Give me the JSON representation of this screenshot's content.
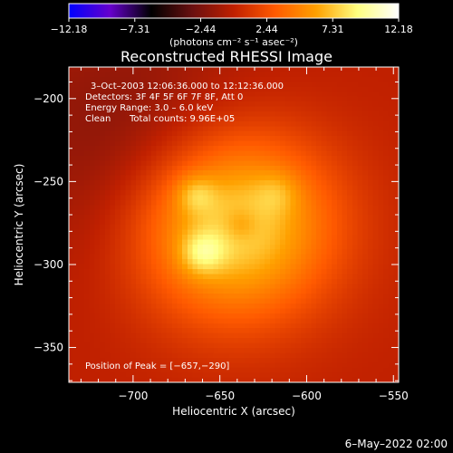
{
  "chart_data": {
    "type": "heatmap",
    "title": "Reconstructed RHESSI Image",
    "xlabel": "Heliocentric X (arcsec)",
    "ylabel": "Heliocentric Y (arcsec)",
    "xlim": [
      -737,
      -547
    ],
    "ylim": [
      -371,
      -181
    ],
    "x_ticks": [
      -700,
      -650,
      -600,
      -550
    ],
    "x_tick_labels": [
      "−700",
      "−650",
      "−600",
      "−550"
    ],
    "y_ticks": [
      -200,
      -250,
      -300,
      -350
    ],
    "y_tick_labels": [
      "−200",
      "−250",
      "−300",
      "−350"
    ],
    "colorbar": {
      "min": -12.18,
      "max": 12.18,
      "ticks": [
        -12.18,
        -7.31,
        -2.44,
        2.44,
        7.31,
        12.18
      ],
      "tick_labels": [
        "−12.18",
        "−7.31",
        "−2.44",
        "2.44",
        "7.31",
        "12.18"
      ],
      "units": "(photons cm⁻² s⁻¹ asec⁻²)",
      "colors": [
        "#0000ff",
        "#6600cc",
        "#000000",
        "#6a1010",
        "#c02000",
        "#ff5a00",
        "#ffa000",
        "#ffff80",
        "#ffffff"
      ]
    },
    "annotations": {
      "time": "3–Oct–2003 12:06:36.000 to 12:12:36.000",
      "detectors": "Detectors: 3F 4F 5F 6F 7F 8F, Att 0",
      "energy": "Energy Range: 3.0 – 6.0 keV",
      "clean": "Clean",
      "total_counts": "Total counts: 9.96E+05",
      "peak": "Position of Peak = [−657,−290]"
    },
    "sources": [
      {
        "x": -642,
        "y": -276,
        "sigma": 40,
        "amp": 8.8
      },
      {
        "x": -660,
        "y": -293,
        "sigma": 9,
        "amp": 3.4
      },
      {
        "x": -664,
        "y": -258,
        "sigma": 8,
        "amp": 2.6
      },
      {
        "x": -617,
        "y": -257,
        "sigma": 9,
        "amp": 1.6
      },
      {
        "x": -638,
        "y": -276,
        "sigma": 7,
        "amp": -1.6
      },
      {
        "x": -700,
        "y": -225,
        "sigma": 55,
        "amp": -2.2
      }
    ]
  },
  "footer": {
    "date": "6–May–2022 02:00"
  }
}
